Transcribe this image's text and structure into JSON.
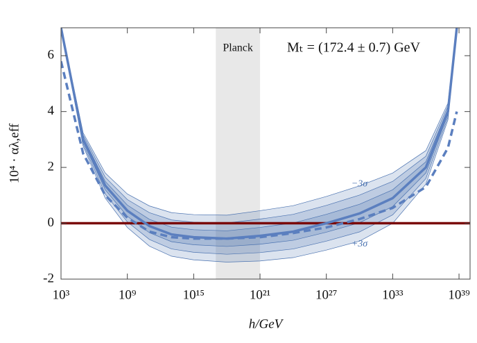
{
  "chart_data": {
    "type": "line",
    "xlabel": "h/GeV",
    "ylabel": "10⁴ · αλ,eff",
    "annotation": "Mₜ = (172.4 ± 0.7) GeV",
    "shaded_region": {
      "label": "Planck",
      "x": [
        1e+17,
        1e+21
      ],
      "color": "#e8e8e8"
    },
    "hline": {
      "value": 0,
      "color": "#7a0a0a"
    },
    "xscale": "log",
    "xlim": [
      1000.0,
      1e+40
    ],
    "ylim": [
      -2,
      7
    ],
    "xticks": [
      {
        "value": 1000.0,
        "label": "10³"
      },
      {
        "value": 1000000000.0,
        "label": "10⁹"
      },
      {
        "value": 1000000000000000.0,
        "label": "10¹⁵"
      },
      {
        "value": 1e+21,
        "label": "10²¹"
      },
      {
        "value": 1e+27,
        "label": "10²⁷"
      },
      {
        "value": 1e+33,
        "label": "10³³"
      },
      {
        "value": 1e+39,
        "label": "10³⁹"
      }
    ],
    "yticks": [
      -2,
      0,
      2,
      4,
      6
    ],
    "x": [
      1000.0,
      100000.0,
      10000000.0,
      1000000000.0,
      100000000000.0,
      10000000000000.0,
      1000000000000000.0,
      1e+18,
      1e+21,
      1e+24,
      1e+27,
      1e+30,
      1e+33,
      1e+36,
      1e+38,
      6.3e+38
    ],
    "band_color": "#4a72b0",
    "band_labels": [
      {
        "text": "−3σ",
        "x": 1e+30,
        "y": 1.4
      },
      {
        "text": "+3σ",
        "x": 1e+30,
        "y": -0.75
      }
    ],
    "bands": [
      {
        "upper": [
          7.06,
          3.24,
          1.8,
          1.05,
          0.62,
          0.38,
          0.31,
          0.29,
          0.45,
          0.63,
          0.96,
          1.34,
          1.8,
          2.6,
          4.3,
          7.15
        ],
        "lower": [
          6.94,
          2.76,
          0.9,
          -0.15,
          -0.82,
          -1.18,
          -1.31,
          -1.39,
          -1.35,
          -1.23,
          -0.96,
          -0.64,
          0.0,
          1.4,
          3.7,
          6.85
        ]
      },
      {
        "upper": [
          7.04,
          3.16,
          1.65,
          0.85,
          0.38,
          0.12,
          0.04,
          0.01,
          0.15,
          0.32,
          0.64,
          1.01,
          1.5,
          2.4,
          4.2,
          7.1
        ],
        "lower": [
          6.96,
          2.84,
          1.05,
          0.05,
          -0.58,
          -0.92,
          -1.04,
          -1.11,
          -1.05,
          -0.92,
          -0.64,
          -0.31,
          0.3,
          1.6,
          3.8,
          6.9
        ]
      },
      {
        "upper": [
          7.02,
          3.08,
          1.5,
          0.65,
          0.14,
          -0.14,
          -0.23,
          -0.27,
          -0.15,
          0.01,
          0.32,
          0.68,
          1.2,
          2.2,
          4.1,
          7.05
        ],
        "lower": [
          6.98,
          2.92,
          1.2,
          0.25,
          -0.34,
          -0.66,
          -0.77,
          -0.83,
          -0.75,
          -0.61,
          -0.32,
          0.02,
          0.6,
          1.8,
          3.9,
          6.95
        ]
      }
    ],
    "series": [
      {
        "color": "#5b7fbf",
        "style": "solid",
        "values": [
          7.0,
          3.0,
          1.35,
          0.45,
          -0.1,
          -0.4,
          -0.5,
          -0.55,
          -0.45,
          -0.3,
          0.0,
          0.35,
          0.9,
          2.0,
          4.0,
          7.0
        ]
      },
      {
        "color": "#5b7fbf",
        "style": "dashed",
        "values": [
          5.8,
          2.5,
          1.0,
          0.2,
          -0.3,
          -0.5,
          -0.55,
          -0.55,
          -0.5,
          -0.35,
          -0.15,
          0.15,
          0.55,
          1.3,
          2.7,
          4.0
        ]
      }
    ]
  }
}
